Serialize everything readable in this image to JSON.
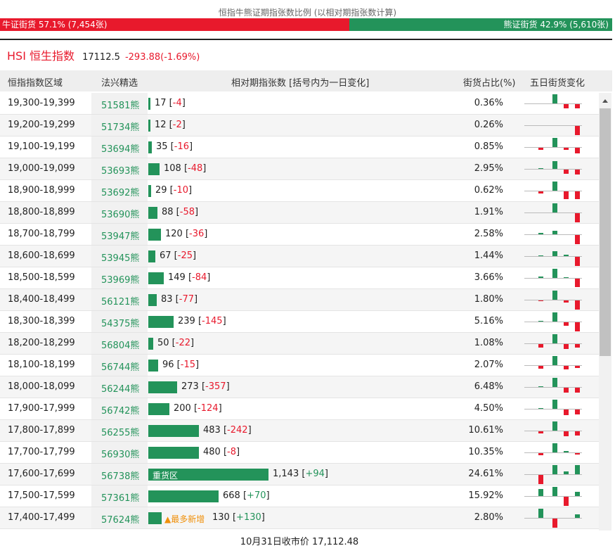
{
  "ratio": {
    "title": "恒指牛熊证期指张数比例 (以相对期指张数计算)",
    "bull_label": "牛证街货 57.1% (7,454张)",
    "bear_label": "熊证街货 42.9% (5,610张)",
    "bull_fraction": 0.571,
    "colors": {
      "bull": "#e8192c",
      "bear": "#23935a"
    }
  },
  "index": {
    "symbol": "HSI",
    "name": "恒生指数",
    "price": "17112.5",
    "change": "-293.88(-1.69%)"
  },
  "table": {
    "headers": {
      "range": "恒指指数区域",
      "issuer": "法兴精选",
      "count": "相对期指张数 [括号内为一日变化]",
      "share": "街货占比(%)",
      "trend": "五日街货变化"
    },
    "heavy_tag": "重货区",
    "new_tag": "▲最多新增",
    "rows": [
      {
        "range": "19,300-19,399",
        "code": "51581熊",
        "count": "17",
        "delta": "-4",
        "share": "0.36%",
        "bar": 17,
        "spark": [
          0,
          0,
          0.9,
          -0.45,
          -0.45
        ]
      },
      {
        "range": "19,200-19,299",
        "code": "51734熊",
        "count": "12",
        "delta": "-2",
        "share": "0.26%",
        "bar": 12,
        "spark": [
          0,
          0,
          0,
          0,
          -0.9
        ]
      },
      {
        "range": "19,100-19,199",
        "code": "53694熊",
        "count": "35",
        "delta": "-16",
        "share": "0.85%",
        "bar": 35,
        "spark": [
          0,
          -0.2,
          0.9,
          -0.2,
          -0.55
        ]
      },
      {
        "range": "19,000-19,099",
        "code": "53693熊",
        "count": "108",
        "delta": "-48",
        "share": "2.95%",
        "bar": 108,
        "spark": [
          0,
          0.1,
          0.8,
          -0.45,
          -0.5
        ]
      },
      {
        "range": "18,900-18,999",
        "code": "53692熊",
        "count": "29",
        "delta": "-10",
        "share": "0.62%",
        "bar": 29,
        "spark": [
          0,
          -0.2,
          0.9,
          -0.8,
          -0.8
        ]
      },
      {
        "range": "18,800-18,899",
        "code": "53690熊",
        "count": "88",
        "delta": "-58",
        "share": "1.91%",
        "bar": 88,
        "spark": [
          0,
          0,
          0.9,
          0,
          -0.9
        ]
      },
      {
        "range": "18,700-18,799",
        "code": "53947熊",
        "count": "120",
        "delta": "-36",
        "share": "2.58%",
        "bar": 120,
        "spark": [
          0,
          0.15,
          0.35,
          0,
          -0.95
        ]
      },
      {
        "range": "18,600-18,699",
        "code": "53945熊",
        "count": "67",
        "delta": "-25",
        "share": "1.44%",
        "bar": 67,
        "spark": [
          0,
          0.1,
          0.5,
          0.15,
          -0.95
        ]
      },
      {
        "range": "18,500-18,599",
        "code": "53969熊",
        "count": "149",
        "delta": "-84",
        "share": "3.66%",
        "bar": 149,
        "spark": [
          0,
          0.15,
          0.95,
          0.1,
          -0.85
        ]
      },
      {
        "range": "18,400-18,499",
        "code": "56121熊",
        "count": "83",
        "delta": "-77",
        "share": "1.80%",
        "bar": 83,
        "spark": [
          0,
          -0.1,
          0.95,
          -0.2,
          -0.9
        ]
      },
      {
        "range": "18,300-18,399",
        "code": "54375熊",
        "count": "239",
        "delta": "-145",
        "share": "5.16%",
        "bar": 239,
        "spark": [
          0,
          0.1,
          0.9,
          -0.35,
          -0.95
        ]
      },
      {
        "range": "18,200-18,299",
        "code": "56804熊",
        "count": "50",
        "delta": "-22",
        "share": "1.08%",
        "bar": 50,
        "spark": [
          0,
          -0.35,
          0.9,
          -0.5,
          -0.35
        ]
      },
      {
        "range": "18,100-18,199",
        "code": "56744熊",
        "count": "96",
        "delta": "-15",
        "share": "2.07%",
        "bar": 96,
        "spark": [
          0,
          -0.3,
          0.9,
          -0.35,
          -0.2
        ]
      },
      {
        "range": "18,000-18,099",
        "code": "56244熊",
        "count": "273",
        "delta": "-357",
        "share": "6.48%",
        "bar": 273,
        "spark": [
          0,
          0.1,
          0.95,
          -0.5,
          -0.5
        ]
      },
      {
        "range": "17,900-17,999",
        "code": "56742熊",
        "count": "200",
        "delta": "-124",
        "share": "4.50%",
        "bar": 200,
        "spark": [
          0,
          0.05,
          0.95,
          -0.55,
          -0.5
        ]
      },
      {
        "range": "17,800-17,899",
        "code": "56255熊",
        "count": "483",
        "delta": "-242",
        "share": "10.61%",
        "bar": 483,
        "spark": [
          0,
          -0.2,
          0.95,
          -0.5,
          -0.45
        ]
      },
      {
        "range": "17,700-17,799",
        "code": "56930熊",
        "count": "480",
        "delta": "-8",
        "share": "10.35%",
        "bar": 480,
        "spark": [
          0,
          -0.2,
          0.9,
          0.15,
          -0.15
        ]
      },
      {
        "range": "17,600-17,699",
        "code": "56738熊",
        "count": "1,143",
        "delta": "+94",
        "share": "24.61%",
        "bar": 1143,
        "heavy": true,
        "spark": [
          0,
          -0.95,
          0.9,
          0.25,
          0.95
        ]
      },
      {
        "range": "17,500-17,599",
        "code": "57361熊",
        "count": "668",
        "delta": "+70",
        "share": "15.92%",
        "bar": 668,
        "spark": [
          0,
          0.7,
          0.9,
          -0.9,
          0.45
        ]
      },
      {
        "range": "17,400-17,499",
        "code": "57624熊",
        "count": "130",
        "delta": "+130",
        "share": "2.80%",
        "bar": 130,
        "newest": true,
        "spark": [
          0,
          0.95,
          -0.95,
          0,
          0.35
        ]
      }
    ]
  },
  "footer": {
    "label": "10月31日收市价",
    "price": "17,112.48"
  }
}
